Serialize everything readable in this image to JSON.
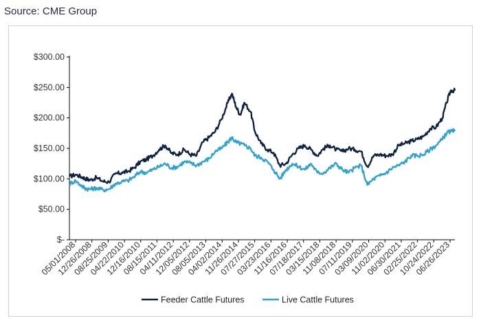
{
  "source": "Source: CME Group",
  "chart_data": {
    "type": "line",
    "title": "",
    "xlabel": "",
    "ylabel": "",
    "ylim": [
      0,
      300
    ],
    "y_ticks": [
      {
        "value": 0,
        "label": "$-"
      },
      {
        "value": 50,
        "label": "$50.00"
      },
      {
        "value": 100,
        "label": "$100.00"
      },
      {
        "value": 150,
        "label": "$150.00"
      },
      {
        "value": 200,
        "label": "$200.00"
      },
      {
        "value": 250,
        "label": "$250.00"
      },
      {
        "value": 300,
        "label": "$300.00"
      }
    ],
    "x_tick_labels": [
      "05/01/2008",
      "12/26/2008",
      "08/25/2009",
      "04/22/2010",
      "12/16/2010",
      "08/15/2011",
      "04/11/2012",
      "12/05/2012",
      "08/05/2013",
      "04/02/2014",
      "11/26/2014",
      "07/27/2015",
      "03/23/2016",
      "11/16/2016",
      "07/18/2017",
      "03/15/2018",
      "11/08/2018",
      "07/11/2019",
      "03/09/2020",
      "11/02/2020",
      "06/30/2021",
      "02/25/2022",
      "10/24/2022",
      "06/26/2023"
    ],
    "x_range": [
      "05/01/2008",
      "10/2023"
    ],
    "grid": false,
    "legend_position": "bottom",
    "colors": {
      "feeder": "#0f2340",
      "live": "#2ea3d1"
    },
    "series": [
      {
        "name": "Feeder Cattle Futures",
        "color": "#0f2340",
        "points": [
          [
            "2008-05",
            104
          ],
          [
            "2008-08",
            107
          ],
          [
            "2008-11",
            103
          ],
          [
            "2009-01",
            100
          ],
          [
            "2009-03",
            98
          ],
          [
            "2009-06",
            102
          ],
          [
            "2009-09",
            96
          ],
          [
            "2009-12",
            95
          ],
          [
            "2010-03",
            108
          ],
          [
            "2010-06",
            110
          ],
          [
            "2010-09",
            112
          ],
          [
            "2010-12",
            118
          ],
          [
            "2011-03",
            128
          ],
          [
            "2011-06",
            132
          ],
          [
            "2011-09",
            138
          ],
          [
            "2011-12",
            148
          ],
          [
            "2012-03",
            155
          ],
          [
            "2012-06",
            142
          ],
          [
            "2012-09",
            140
          ],
          [
            "2012-12",
            148
          ],
          [
            "2013-03",
            140
          ],
          [
            "2013-06",
            138
          ],
          [
            "2013-09",
            160
          ],
          [
            "2013-12",
            168
          ],
          [
            "2014-03",
            178
          ],
          [
            "2014-06",
            198
          ],
          [
            "2014-09",
            225
          ],
          [
            "2014-11",
            240
          ],
          [
            "2015-01",
            218
          ],
          [
            "2015-03",
            205
          ],
          [
            "2015-05",
            225
          ],
          [
            "2015-08",
            210
          ],
          [
            "2015-10",
            178
          ],
          [
            "2016-01",
            158
          ],
          [
            "2016-04",
            148
          ],
          [
            "2016-07",
            143
          ],
          [
            "2016-10",
            122
          ],
          [
            "2017-01",
            125
          ],
          [
            "2017-04",
            140
          ],
          [
            "2017-07",
            150
          ],
          [
            "2017-10",
            155
          ],
          [
            "2018-01",
            148
          ],
          [
            "2018-04",
            138
          ],
          [
            "2018-07",
            150
          ],
          [
            "2018-10",
            155
          ],
          [
            "2019-01",
            148
          ],
          [
            "2019-04",
            145
          ],
          [
            "2019-07",
            150
          ],
          [
            "2019-10",
            148
          ],
          [
            "2020-01",
            145
          ],
          [
            "2020-04",
            120
          ],
          [
            "2020-07",
            138
          ],
          [
            "2020-10",
            140
          ],
          [
            "2021-01",
            138
          ],
          [
            "2021-04",
            140
          ],
          [
            "2021-07",
            155
          ],
          [
            "2021-10",
            158
          ],
          [
            "2022-01",
            162
          ],
          [
            "2022-04",
            165
          ],
          [
            "2022-07",
            170
          ],
          [
            "2022-10",
            182
          ],
          [
            "2023-01",
            185
          ],
          [
            "2023-04",
            200
          ],
          [
            "2023-06",
            225
          ],
          [
            "2023-08",
            245
          ],
          [
            "2023-10",
            245
          ]
        ]
      },
      {
        "name": "Live Cattle Futures",
        "color": "#2ea3d1",
        "points": [
          [
            "2008-05",
            92
          ],
          [
            "2008-08",
            97
          ],
          [
            "2008-11",
            88
          ],
          [
            "2009-01",
            84
          ],
          [
            "2009-03",
            83
          ],
          [
            "2009-06",
            85
          ],
          [
            "2009-09",
            82
          ],
          [
            "2009-12",
            83
          ],
          [
            "2010-03",
            92
          ],
          [
            "2010-06",
            95
          ],
          [
            "2010-09",
            97
          ],
          [
            "2010-12",
            103
          ],
          [
            "2011-03",
            112
          ],
          [
            "2011-06",
            110
          ],
          [
            "2011-09",
            115
          ],
          [
            "2011-12",
            120
          ],
          [
            "2012-03",
            125
          ],
          [
            "2012-06",
            118
          ],
          [
            "2012-09",
            120
          ],
          [
            "2012-12",
            128
          ],
          [
            "2013-03",
            126
          ],
          [
            "2013-06",
            122
          ],
          [
            "2013-09",
            128
          ],
          [
            "2013-12",
            133
          ],
          [
            "2014-03",
            145
          ],
          [
            "2014-06",
            150
          ],
          [
            "2014-09",
            160
          ],
          [
            "2014-11",
            168
          ],
          [
            "2015-01",
            160
          ],
          [
            "2015-03",
            158
          ],
          [
            "2015-05",
            155
          ],
          [
            "2015-08",
            150
          ],
          [
            "2015-10",
            138
          ],
          [
            "2016-01",
            135
          ],
          [
            "2016-04",
            128
          ],
          [
            "2016-07",
            115
          ],
          [
            "2016-10",
            100
          ],
          [
            "2017-01",
            115
          ],
          [
            "2017-04",
            125
          ],
          [
            "2017-07",
            120
          ],
          [
            "2017-10",
            115
          ],
          [
            "2018-01",
            125
          ],
          [
            "2018-04",
            110
          ],
          [
            "2018-07",
            110
          ],
          [
            "2018-10",
            118
          ],
          [
            "2019-01",
            125
          ],
          [
            "2019-04",
            115
          ],
          [
            "2019-07",
            110
          ],
          [
            "2019-10",
            118
          ],
          [
            "2020-01",
            122
          ],
          [
            "2020-04",
            90
          ],
          [
            "2020-07",
            100
          ],
          [
            "2020-10",
            105
          ],
          [
            "2021-01",
            110
          ],
          [
            "2021-04",
            118
          ],
          [
            "2021-07",
            122
          ],
          [
            "2021-10",
            128
          ],
          [
            "2022-01",
            138
          ],
          [
            "2022-04",
            138
          ],
          [
            "2022-07",
            140
          ],
          [
            "2022-10",
            148
          ],
          [
            "2023-01",
            155
          ],
          [
            "2023-04",
            165
          ],
          [
            "2023-06",
            175
          ],
          [
            "2023-08",
            178
          ],
          [
            "2023-10",
            178
          ]
        ]
      }
    ]
  }
}
